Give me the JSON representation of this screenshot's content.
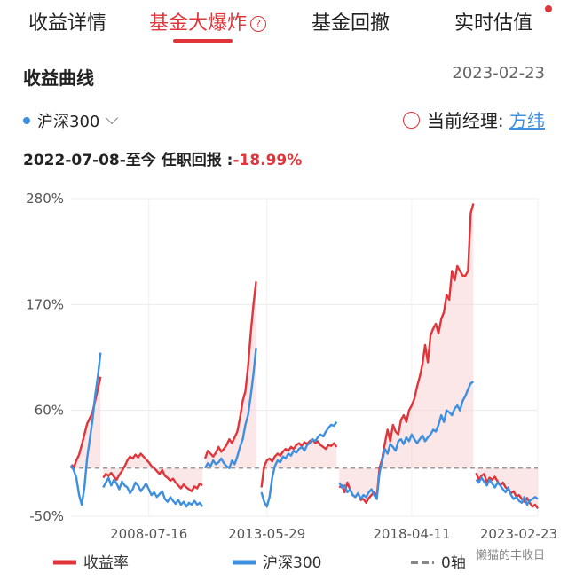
{
  "tabs": [
    {
      "label": "收益详情",
      "active": false
    },
    {
      "label": "基金大爆炸",
      "active": true
    },
    {
      "label": "基金回撤",
      "active": false
    },
    {
      "label": "实时估值",
      "active": false
    }
  ],
  "section": {
    "title": "收益曲线",
    "date": "2023-02-23"
  },
  "index_selector": {
    "label": "沪深300"
  },
  "manager": {
    "label": "当前经理:",
    "name": "方纬"
  },
  "tenure": {
    "text": "2022-07-08-至今 任职回报 :",
    "return": "-18.99%"
  },
  "watermark": "懒猫的丰收日",
  "colors": {
    "fund": "#e0353a",
    "index": "#3d8fe0",
    "zero": "#888888"
  },
  "chart_data": {
    "type": "line",
    "y_unit": "%",
    "ylim": [
      -50,
      280
    ],
    "yticks": [
      "280%",
      "170%",
      "60%",
      "-50%"
    ],
    "xticks": [
      "2008-07-16",
      "2013-05-29",
      "2018-04-11",
      "2023-02-23"
    ],
    "legend": [
      "收益率",
      "沪深300",
      "0轴"
    ],
    "legend_placement": "bottom",
    "grid": true,
    "series": [
      {
        "name": "收益率",
        "color": "#e0353a",
        "segments": [
          {
            "x": [
              0,
              0.5,
              1,
              2,
              3,
              4,
              5,
              6,
              7,
              8,
              9,
              10,
              11
            ],
            "y": [
              0,
              3,
              0,
              8,
              14,
              24,
              35,
              46,
              52,
              58,
              70,
              82,
              95
            ]
          },
          {
            "x": [
              12,
              13,
              14,
              15,
              16,
              17,
              18,
              19,
              20,
              21,
              22,
              23,
              24,
              25,
              26,
              27,
              28,
              29,
              30,
              31,
              32,
              33,
              34,
              35,
              36,
              37,
              38,
              39,
              40,
              41,
              42,
              43,
              44,
              45,
              46,
              47,
              48,
              49
            ],
            "y": [
              -10,
              -6,
              -8,
              -5,
              -9,
              -12,
              -7,
              -3,
              2,
              8,
              12,
              10,
              14,
              11,
              15,
              12,
              9,
              6,
              2,
              0,
              -3,
              -6,
              -2,
              -8,
              -10,
              -13,
              -11,
              -15,
              -18,
              -21,
              -17,
              -20,
              -22,
              -24,
              -19,
              -21,
              -16,
              -18
            ]
          },
          {
            "x": [
              50,
              51,
              52,
              53,
              54,
              55,
              56,
              57,
              58,
              59,
              60,
              61,
              62,
              63,
              64,
              65,
              66,
              67,
              68,
              69
            ],
            "y": [
              10,
              18,
              15,
              12,
              16,
              22,
              17,
              20,
              24,
              30,
              26,
              32,
              38,
              52,
              70,
              80,
              105,
              140,
              170,
              194
            ]
          },
          {
            "x": [
              71,
              72,
              73,
              74,
              75,
              76,
              77,
              78,
              79,
              80,
              81,
              82,
              83,
              84,
              85,
              86,
              87,
              88,
              89,
              90,
              91,
              92,
              93,
              94,
              95,
              96,
              97,
              98,
              99
            ],
            "y": [
              -20,
              2,
              8,
              10,
              7,
              12,
              15,
              13,
              17,
              20,
              18,
              22,
              20,
              24,
              26,
              23,
              27,
              25,
              28,
              30,
              26,
              28,
              24,
              22,
              20,
              24,
              23,
              26,
              22
            ]
          },
          {
            "x": [
              100,
              101,
              102,
              103,
              104,
              105,
              106,
              107,
              108,
              109,
              110,
              111,
              112,
              113,
              114,
              115,
              116,
              117,
              118,
              119,
              120,
              121,
              122,
              123,
              124,
              125,
              126,
              127,
              128,
              129,
              130,
              131,
              132,
              133,
              134,
              135,
              136,
              137,
              138,
              139,
              140,
              141,
              142,
              143,
              144,
              145,
              146,
              147,
              148,
              149,
              150
            ],
            "y": [
              -20,
              -18,
              -25,
              -15,
              -22,
              -28,
              -30,
              -26,
              -33,
              -32,
              -36,
              -31,
              -28,
              -25,
              -30,
              0,
              10,
              26,
              40,
              28,
              45,
              38,
              35,
              50,
              55,
              48,
              60,
              65,
              72,
              85,
              95,
              108,
              128,
              110,
              138,
              145,
              150,
              140,
              155,
              162,
              180,
              175,
              205,
              195,
              210,
              205,
              200,
              200,
              205,
              265,
              275
            ]
          },
          {
            "x": [
              151,
              152,
              153,
              154,
              155,
              156,
              157,
              158,
              159,
              160,
              161,
              162,
              163,
              164,
              165,
              166,
              167,
              168,
              169,
              170,
              171,
              172,
              173,
              174
            ],
            "y": [
              -5,
              -12,
              -8,
              -6,
              -15,
              -10,
              -12,
              -9,
              -14,
              -18,
              -15,
              -20,
              -22,
              -26,
              -24,
              -30,
              -28,
              -32,
              -35,
              -31,
              -36,
              -40,
              -38,
              -42
            ]
          }
        ]
      },
      {
        "name": "沪深300",
        "color": "#3d8fe0",
        "segments": [
          {
            "x": [
              0,
              1,
              2,
              3,
              4,
              5,
              6,
              7,
              8,
              9,
              10,
              11
            ],
            "y": [
              3,
              -2,
              -10,
              -28,
              -38,
              -20,
              10,
              30,
              50,
              75,
              95,
              120
            ]
          },
          {
            "x": [
              12,
              13,
              14,
              15,
              16,
              17,
              18,
              19,
              20,
              21,
              22,
              23,
              24,
              25,
              26,
              27,
              28,
              29,
              30,
              31,
              32,
              33,
              34,
              35,
              36,
              37,
              38,
              39,
              40,
              41,
              42,
              43,
              44,
              45,
              46,
              47,
              48,
              49
            ],
            "y": [
              -20,
              -15,
              -10,
              -18,
              -12,
              -16,
              -22,
              -14,
              -18,
              -20,
              -26,
              -22,
              -15,
              -18,
              -24,
              -20,
              -16,
              -22,
              -28,
              -25,
              -30,
              -27,
              -24,
              -32,
              -35,
              -30,
              -34,
              -37,
              -33,
              -38,
              -35,
              -40,
              -36,
              -38,
              -34,
              -38,
              -36,
              -40
            ]
          },
          {
            "x": [
              50,
              51,
              52,
              53,
              54,
              55,
              56,
              57,
              58,
              59,
              60,
              61,
              62,
              63,
              64,
              65,
              66,
              67,
              68,
              69
            ],
            "y": [
              0,
              5,
              2,
              8,
              4,
              6,
              10,
              5,
              2,
              0,
              8,
              4,
              12,
              22,
              30,
              45,
              55,
              75,
              98,
              125
            ]
          },
          {
            "x": [
              71,
              72,
              73,
              74,
              75,
              76,
              77,
              78,
              79,
              80,
              81,
              82,
              83,
              84,
              85,
              86,
              87,
              88,
              89,
              90,
              91,
              92,
              93,
              94,
              95,
              96,
              97,
              98,
              99
            ],
            "y": [
              -25,
              -35,
              -40,
              -30,
              -10,
              2,
              8,
              6,
              12,
              10,
              15,
              13,
              18,
              16,
              20,
              22,
              18,
              24,
              26,
              30,
              28,
              32,
              35,
              33,
              38,
              42,
              45,
              44,
              48
            ]
          },
          {
            "x": [
              100,
              101,
              102,
              103,
              104,
              105,
              106,
              107,
              108,
              109,
              110,
              111,
              112,
              113,
              114,
              115,
              116,
              117,
              118,
              119,
              120,
              121,
              122,
              123,
              124,
              125,
              126,
              127,
              128,
              129,
              130,
              131,
              132,
              133,
              134,
              135,
              136,
              137,
              138,
              139,
              140,
              141,
              142,
              143,
              144,
              145,
              146,
              147,
              148,
              149,
              150
            ],
            "y": [
              -15,
              -20,
              -18,
              -25,
              -22,
              -28,
              -30,
              -26,
              -32,
              -28,
              -30,
              -25,
              -22,
              -28,
              -32,
              -5,
              8,
              20,
              15,
              25,
              22,
              18,
              28,
              30,
              25,
              32,
              28,
              35,
              30,
              26,
              30,
              34,
              28,
              32,
              35,
              40,
              38,
              45,
              55,
              48,
              60,
              58,
              55,
              62,
              65,
              60,
              70,
              75,
              82,
              88,
              90
            ]
          },
          {
            "x": [
              151,
              152,
              153,
              154,
              155,
              156,
              157,
              158,
              159,
              160,
              161,
              162,
              163,
              164,
              165,
              166,
              167,
              168,
              169,
              170,
              171,
              172,
              173,
              174
            ],
            "y": [
              -12,
              -15,
              -10,
              -14,
              -18,
              -12,
              -16,
              -20,
              -15,
              -18,
              -22,
              -25,
              -20,
              -28,
              -32,
              -30,
              -34,
              -36,
              -30,
              -38,
              -34,
              -32,
              -30,
              -32
            ]
          }
        ]
      }
    ]
  }
}
